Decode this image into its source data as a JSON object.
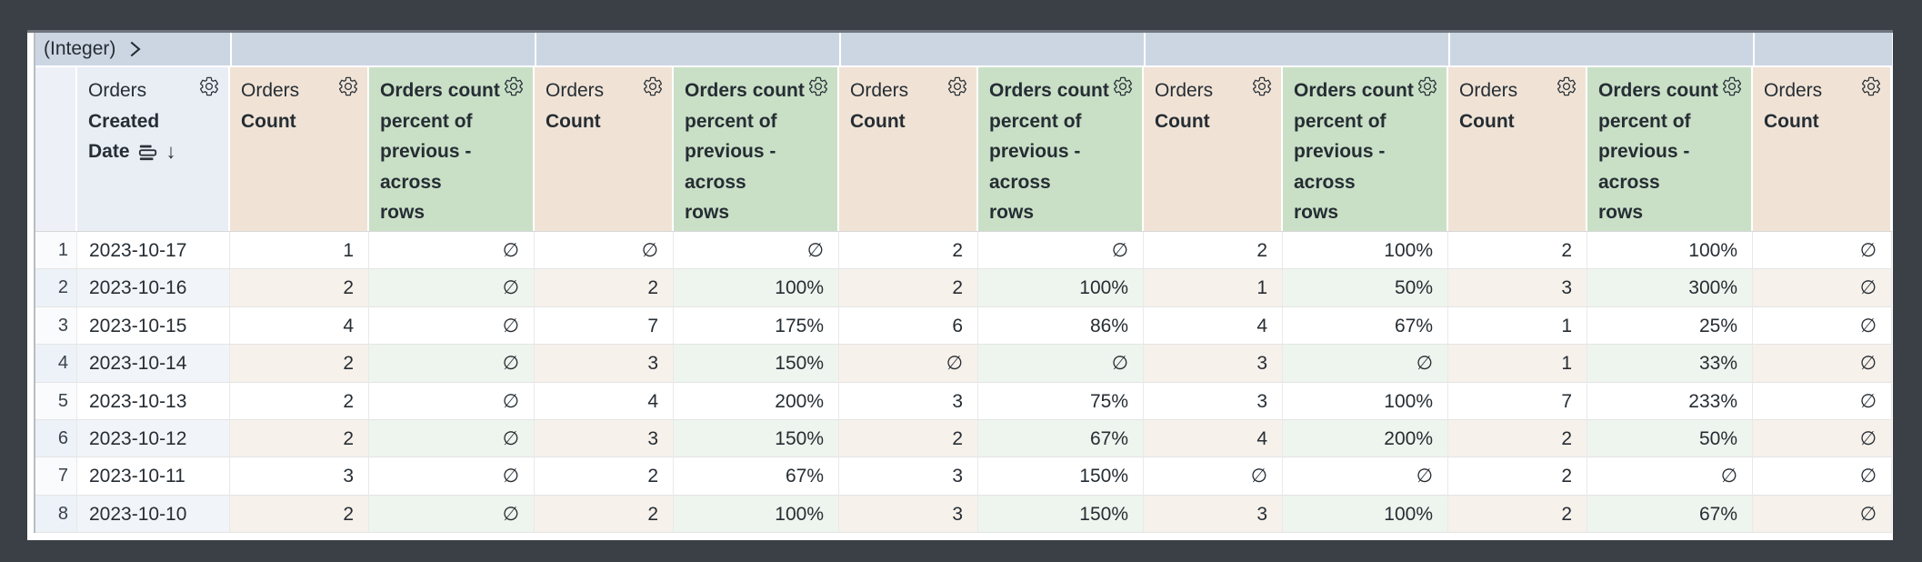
{
  "app": {
    "description": "BI explore pivoted data table"
  },
  "pivot_header": {
    "label": "(Integer)"
  },
  "column_headers": {
    "dimension": {
      "view": "Orders",
      "field_lines": [
        "Created",
        "Date"
      ],
      "sort_direction_glyph": "↓"
    },
    "measure_count": {
      "view": "Orders",
      "field": "Count"
    },
    "measure_percent": {
      "full_label": "Orders count percent of previous - across rows",
      "lines": [
        "Orders count",
        "percent of",
        "previous -",
        "across",
        "rows"
      ]
    },
    "pivot_group_count": 6,
    "visible_value_columns": 11
  },
  "icons": {
    "gear": "settings-gear",
    "pivot_chevron": "chevron-right",
    "date_field": "rows",
    "sort": "arrow-down"
  },
  "null_symbol": "∅",
  "table": {
    "rows": [
      {
        "num": "1",
        "date": "2023-10-17",
        "values": [
          "1",
          "∅",
          "∅",
          "∅",
          "2",
          "∅",
          "2",
          "100%",
          "2",
          "100%",
          "∅"
        ]
      },
      {
        "num": "2",
        "date": "2023-10-16",
        "values": [
          "2",
          "∅",
          "2",
          "100%",
          "2",
          "100%",
          "1",
          "50%",
          "3",
          "300%",
          "∅"
        ]
      },
      {
        "num": "3",
        "date": "2023-10-15",
        "values": [
          "4",
          "∅",
          "7",
          "175%",
          "6",
          "86%",
          "4",
          "67%",
          "1",
          "25%",
          "∅"
        ]
      },
      {
        "num": "4",
        "date": "2023-10-14",
        "values": [
          "2",
          "∅",
          "3",
          "150%",
          "∅",
          "∅",
          "3",
          "∅",
          "1",
          "33%",
          "∅"
        ]
      },
      {
        "num": "5",
        "date": "2023-10-13",
        "values": [
          "2",
          "∅",
          "4",
          "200%",
          "3",
          "75%",
          "3",
          "100%",
          "7",
          "233%",
          "∅"
        ]
      },
      {
        "num": "6",
        "date": "2023-10-12",
        "values": [
          "2",
          "∅",
          "3",
          "150%",
          "2",
          "67%",
          "4",
          "200%",
          "2",
          "50%",
          "∅"
        ]
      },
      {
        "num": "7",
        "date": "2023-10-11",
        "values": [
          "3",
          "∅",
          "2",
          "67%",
          "3",
          "150%",
          "∅",
          "∅",
          "2",
          "∅",
          "∅"
        ]
      },
      {
        "num": "8",
        "date": "2023-10-10",
        "values": [
          "2",
          "∅",
          "2",
          "100%",
          "3",
          "150%",
          "3",
          "100%",
          "2",
          "67%",
          "∅"
        ]
      }
    ]
  },
  "colors": {
    "frame_background": "#3b4046",
    "pivot_band": "#ccd6e3",
    "dimension_header": "#e9eef5",
    "row_number_header": "#edf1f7",
    "measure_header": "#f0e3d6",
    "calc_header": "#c9e0c7",
    "alt_row_dimension": "#f1f5fa",
    "alt_row_measure": "#f7f1eb",
    "alt_row_calc": "#eef5ee",
    "text": "#262d33"
  }
}
